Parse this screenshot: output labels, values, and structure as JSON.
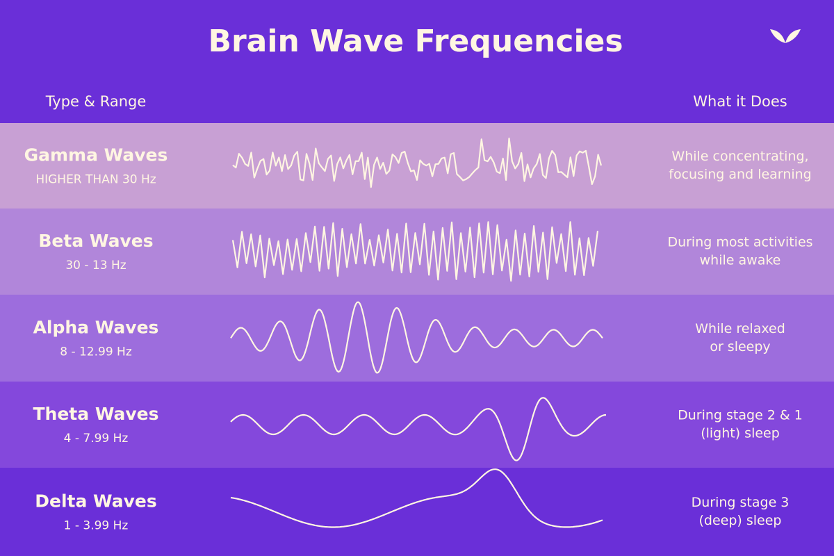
{
  "header": {
    "title": "Brain Wave Frequencies"
  },
  "columns": {
    "left": "Type & Range",
    "right": "What it Does"
  },
  "rows": [
    {
      "name": "Gamma Waves",
      "range": "HIGHER THAN 30 Hz",
      "description": [
        "While concentrating,",
        "focusing and learning"
      ]
    },
    {
      "name": "Beta Waves",
      "range": "30 - 13 Hz",
      "description": [
        "During most activities",
        "while awake"
      ]
    },
    {
      "name": "Alpha Waves",
      "range": "8 - 12.99 Hz",
      "description": [
        "While relaxed",
        "or sleepy"
      ]
    },
    {
      "name": "Theta Waves",
      "range": "4 - 7.99 Hz",
      "description": [
        "During stage 2 & 1",
        "(light) sleep"
      ]
    },
    {
      "name": "Delta Waves",
      "range": "1 - 3.99 Hz",
      "description": [
        "During stage 3",
        "(deep) sleep"
      ]
    }
  ]
}
